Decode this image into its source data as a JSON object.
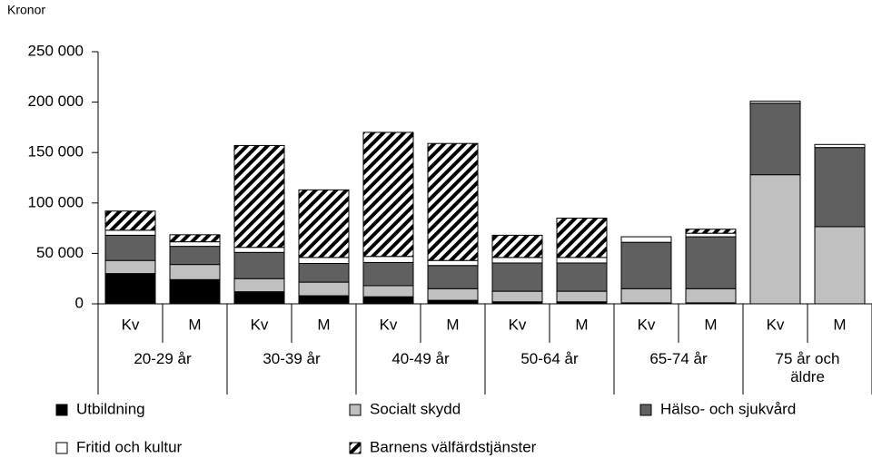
{
  "chart_data": {
    "type": "stacked-bar",
    "y_label": "Kronor",
    "categories": [
      "Kv",
      "M",
      "Kv",
      "M",
      "Kv",
      "M",
      "Kv",
      "M",
      "Kv",
      "M",
      "Kv",
      "M"
    ],
    "groups": [
      "20-29 år",
      "30-39 år",
      "40-49 år",
      "50-64 år",
      "65-74 år",
      "75 år och äldre"
    ],
    "series": [
      {
        "name": "Utbildning",
        "color": "#000000",
        "values": [
          30000,
          24000,
          12000,
          8000,
          7000,
          3500,
          2000,
          2000,
          1000,
          1000,
          0,
          0
        ]
      },
      {
        "name": "Socialt skydd",
        "color": "#c0c0c0",
        "values": [
          13000,
          15000,
          13000,
          13500,
          11000,
          11500,
          10500,
          10500,
          14000,
          14000,
          128000,
          76500
        ]
      },
      {
        "name": "Hälso- och sjukvård",
        "color": "#606060",
        "values": [
          25000,
          18000,
          26000,
          18500,
          23000,
          23000,
          28000,
          28000,
          46000,
          51500,
          71000,
          78500
        ]
      },
      {
        "name": "Fritid och kultur",
        "color": "#ffffff",
        "values": [
          5000,
          4500,
          5000,
          6000,
          6000,
          5000,
          5500,
          5500,
          5500,
          3500,
          2000,
          3000
        ]
      },
      {
        "name": "Barnens välfärdstjänster",
        "color": "#000000",
        "hatch": true,
        "values": [
          19000,
          7000,
          101000,
          67000,
          123000,
          116000,
          22000,
          39000,
          0,
          4000,
          0,
          0
        ]
      }
    ],
    "ylim": [
      0,
      250000
    ],
    "yticks": [
      {
        "value": 0,
        "label": "0"
      },
      {
        "value": 50000,
        "label": "50 000"
      },
      {
        "value": 100000,
        "label": "100 000"
      },
      {
        "value": 150000,
        "label": "150 000"
      },
      {
        "value": 200000,
        "label": "200 000"
      },
      {
        "value": 250000,
        "label": "250 000"
      }
    ],
    "grid": false
  }
}
